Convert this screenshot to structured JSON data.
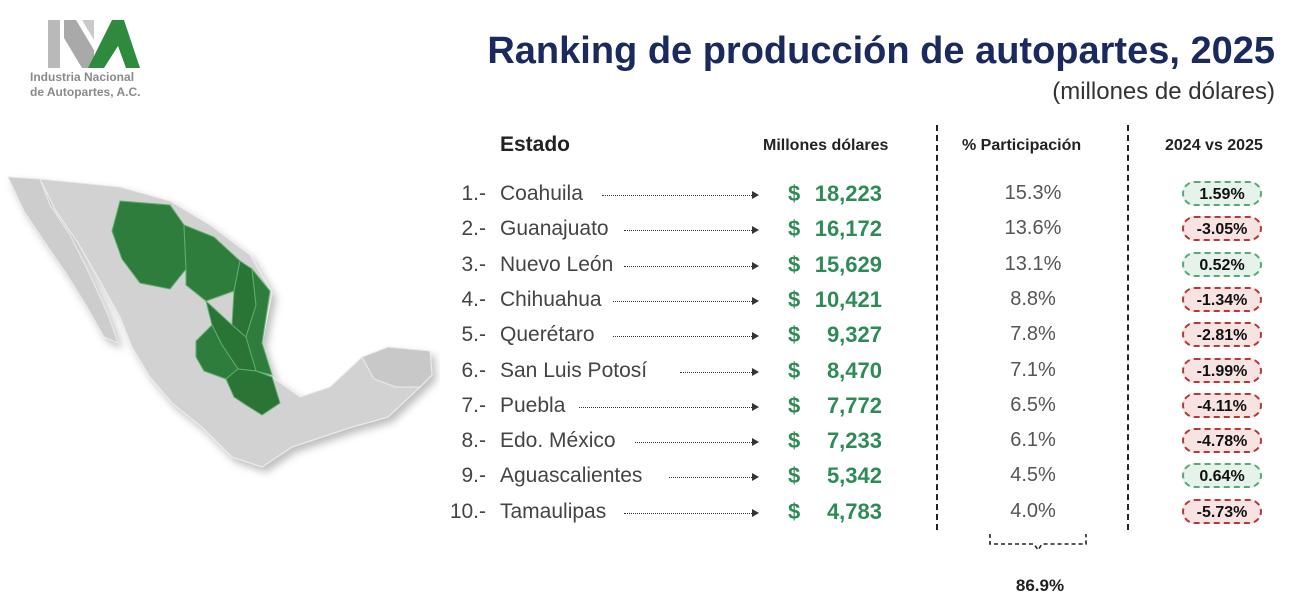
{
  "logo": {
    "lines": [
      "Industria Nacional",
      "de Autopartes, A.C."
    ]
  },
  "title": "Ranking de producción de autopartes, 2025",
  "subtitle": "(millones de dólares)",
  "colors": {
    "title": "#1a2a5e",
    "value": "#2e8b57",
    "positive": "#5aa87a",
    "negative": "#b23a3a",
    "map_highlight": "#2f7d3c",
    "map_base": "#cfcfcf"
  },
  "map": {
    "icon": "mexico-map-icon"
  },
  "table": {
    "headers": {
      "state": "Estado",
      "value": "Millones dólares",
      "share": "% Participación",
      "change": "2024 vs 2025"
    },
    "total_share": "86.9%"
  },
  "chart_data": {
    "type": "table",
    "title": "Ranking de producción de autopartes, 2025",
    "subtitle": "(millones de dólares)",
    "columns": [
      "Estado",
      "Millones dólares",
      "% Participación",
      "2024 vs 2025"
    ],
    "rows": [
      {
        "rank": "1.-",
        "state": "Coahuila",
        "currency": "$",
        "value": "18,223",
        "share": "15.3%",
        "change": "1.59%",
        "trend": "pos"
      },
      {
        "rank": "2.-",
        "state": "Guanajuato",
        "currency": "$",
        "value": "16,172",
        "share": "13.6%",
        "change": "-3.05%",
        "trend": "neg"
      },
      {
        "rank": "3.-",
        "state": "Nuevo León",
        "currency": "$",
        "value": "15,629",
        "share": "13.1%",
        "change": "0.52%",
        "trend": "pos"
      },
      {
        "rank": "4.-",
        "state": "Chihuahua",
        "currency": "$",
        "value": "10,421",
        "share": "8.8%",
        "change": "-1.34%",
        "trend": "neg"
      },
      {
        "rank": "5.-",
        "state": "Querétaro",
        "currency": "$",
        "value": "9,327",
        "share": "7.8%",
        "change": "-2.81%",
        "trend": "neg"
      },
      {
        "rank": "6.-",
        "state": "San Luis Potosí",
        "currency": "$",
        "value": "8,470",
        "share": "7.1%",
        "change": "-1.99%",
        "trend": "neg"
      },
      {
        "rank": "7.-",
        "state": "Puebla",
        "currency": "$",
        "value": "7,772",
        "share": "6.5%",
        "change": "-4.11%",
        "trend": "neg"
      },
      {
        "rank": "8.-",
        "state": "Edo. México",
        "currency": "$",
        "value": "7,233",
        "share": "6.1%",
        "change": "-4.78%",
        "trend": "neg"
      },
      {
        "rank": "9.-",
        "state": "Aguascalientes",
        "currency": "$",
        "value": "5,342",
        "share": "4.5%",
        "change": "0.64%",
        "trend": "pos"
      },
      {
        "rank": "10.-",
        "state": "Tamaulipas",
        "currency": "$",
        "value": "4,783",
        "share": "4.0%",
        "change": "-5.73%",
        "trend": "neg"
      }
    ]
  }
}
